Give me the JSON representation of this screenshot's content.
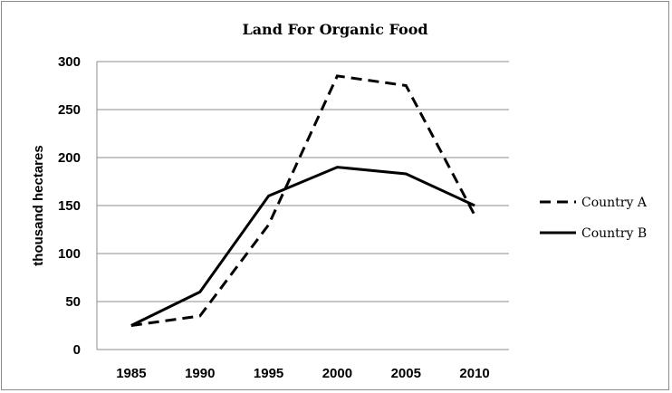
{
  "chart_data": {
    "type": "line",
    "title": "Land For Organic Food",
    "xlabel": "",
    "ylabel": "thousand hectares",
    "categories": [
      "1985",
      "1990",
      "1995",
      "2000",
      "2005",
      "2010"
    ],
    "yticks": [
      "0",
      "50",
      "100",
      "150",
      "200",
      "250",
      "300"
    ],
    "ylim": [
      0,
      300
    ],
    "grid": true,
    "legend_position": "right",
    "series": [
      {
        "name": "Country A",
        "style": "dashed",
        "color": "#000000",
        "values": [
          25,
          35,
          130,
          285,
          275,
          140
        ]
      },
      {
        "name": "Country B",
        "style": "solid",
        "color": "#000000",
        "values": [
          25,
          60,
          160,
          190,
          183,
          150
        ]
      }
    ]
  }
}
